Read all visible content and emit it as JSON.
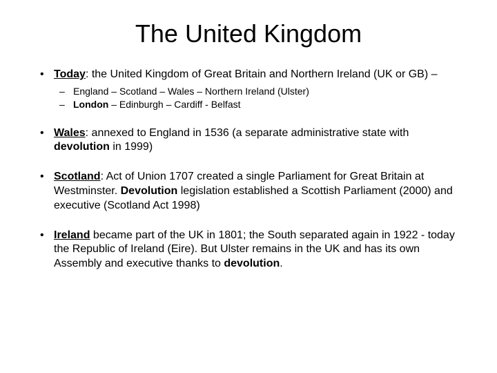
{
  "title": "The United Kingdom",
  "bullets": [
    {
      "segments": [
        {
          "text": "Today",
          "bold": true,
          "underline": true
        },
        {
          "text": ": the United Kingdom of Great Britain and Northern Ireland (UK or GB) –"
        }
      ],
      "subs": [
        [
          {
            "text": "England – Scotland – Wales – Northern Ireland (Ulster)"
          }
        ],
        [
          {
            "text": "London",
            "bold": true
          },
          {
            "text": " – Edinburgh – Cardiff - Belfast"
          }
        ]
      ]
    },
    {
      "segments": [
        {
          "text": "Wales",
          "bold": true,
          "underline": true
        },
        {
          "text": ": annexed to England in 1536 (a separate administrative state with "
        },
        {
          "text": "devolution",
          "bold": true
        },
        {
          "text": " in 1999)"
        }
      ]
    },
    {
      "segments": [
        {
          "text": "Scotland",
          "bold": true,
          "underline": true
        },
        {
          "text": ":  Act of Union 1707 created a single Parliament for Great Britain at Westminster. "
        },
        {
          "text": "Devolution",
          "bold": true
        },
        {
          "text": " legislation established a Scottish Parliament (2000) and executive (Scotland Act 1998)"
        }
      ]
    },
    {
      "segments": [
        {
          "text": "Ireland",
          "bold": true,
          "underline": true
        },
        {
          "text": " became part of the UK in 1801; the South separated again in 1922 -  today the Republic of Ireland (Eire).  But Ulster remains in the UK and has its own Assembly and executive thanks to "
        },
        {
          "text": "devolution",
          "bold": true
        },
        {
          "text": "."
        }
      ]
    }
  ],
  "style": {
    "background_color": "#ffffff",
    "text_color": "#000000",
    "title_fontsize": 36,
    "body_fontsize": 16,
    "sub_fontsize": 14,
    "font_family": "Arial"
  }
}
